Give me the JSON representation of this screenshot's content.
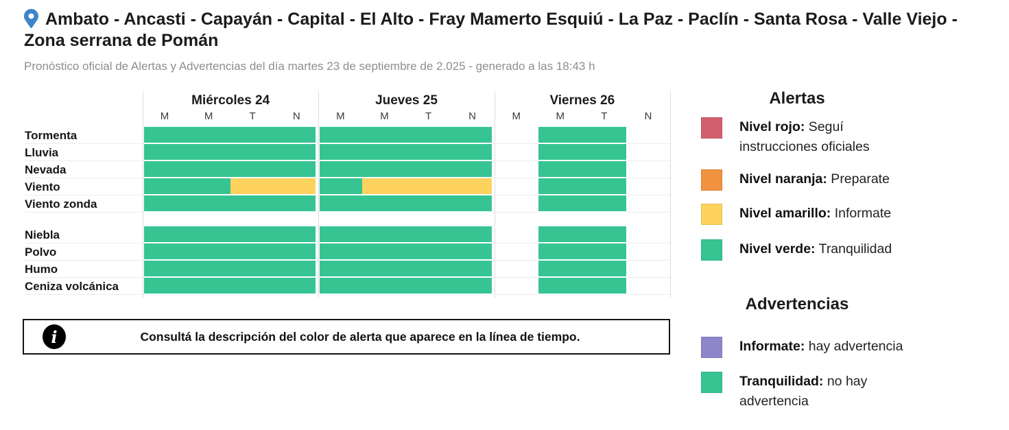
{
  "header": {
    "pin_icon": "location-pin-icon",
    "title": "Ambato - Ancasti - Capayán - Capital - El Alto - Fray Mamerto Esquiú - La Paz - Paclín - Santa Rosa - Valle Viejo - Zona serrana de Pomán",
    "subtitle": "Pronóstico oficial de Alertas y Advertencias del día martes 23 de septiembre de 2.025 - generado a las 18:43 h"
  },
  "colors": {
    "red": "#d25f6d",
    "orange": "#f0923e",
    "yellow": "#fdd35e",
    "green": "#36c592",
    "purple": "#8d86c9",
    "pin_blue": "#3d85c8"
  },
  "chart_data": {
    "type": "heatmap",
    "description": "Alert level timeline per phenomenon; cells are day quarters (M madrugada, M mañana, T tarde, N noche); null = no data",
    "days": [
      {
        "label": "Miércoles 24",
        "slots": [
          "M",
          "M",
          "T",
          "N"
        ]
      },
      {
        "label": "Jueves 25",
        "slots": [
          "M",
          "M",
          "T",
          "N"
        ]
      },
      {
        "label": "Viernes 26",
        "slots": [
          "M",
          "M",
          "T",
          "N"
        ]
      }
    ],
    "row_groups": [
      {
        "rows": [
          {
            "label": "Tormenta",
            "cells": [
              [
                "green",
                "green",
                "green",
                "green"
              ],
              [
                "green",
                "green",
                "green",
                "green"
              ],
              [
                null,
                "green",
                "green",
                null
              ]
            ]
          },
          {
            "label": "Lluvia",
            "cells": [
              [
                "green",
                "green",
                "green",
                "green"
              ],
              [
                "green",
                "green",
                "green",
                "green"
              ],
              [
                null,
                "green",
                "green",
                null
              ]
            ]
          },
          {
            "label": "Nevada",
            "cells": [
              [
                "green",
                "green",
                "green",
                "green"
              ],
              [
                "green",
                "green",
                "green",
                "green"
              ],
              [
                null,
                "green",
                "green",
                null
              ]
            ]
          },
          {
            "label": "Viento",
            "cells": [
              [
                "green",
                "green",
                "yellow",
                "yellow"
              ],
              [
                "green",
                "yellow",
                "yellow",
                "yellow"
              ],
              [
                null,
                "green",
                "green",
                null
              ]
            ]
          },
          {
            "label": "Viento zonda",
            "cells": [
              [
                "green",
                "green",
                "green",
                "green"
              ],
              [
                "green",
                "green",
                "green",
                "green"
              ],
              [
                null,
                "green",
                "green",
                null
              ]
            ]
          }
        ]
      },
      {
        "rows": [
          {
            "label": "Niebla",
            "cells": [
              [
                "green",
                "green",
                "green",
                "green"
              ],
              [
                "green",
                "green",
                "green",
                "green"
              ],
              [
                null,
                "green",
                "green",
                null
              ]
            ]
          },
          {
            "label": "Polvo",
            "cells": [
              [
                "green",
                "green",
                "green",
                "green"
              ],
              [
                "green",
                "green",
                "green",
                "green"
              ],
              [
                null,
                "green",
                "green",
                null
              ]
            ]
          },
          {
            "label": "Humo",
            "cells": [
              [
                "green",
                "green",
                "green",
                "green"
              ],
              [
                "green",
                "green",
                "green",
                "green"
              ],
              [
                null,
                "green",
                "green",
                null
              ]
            ]
          },
          {
            "label": "Ceniza volcánica",
            "cells": [
              [
                "green",
                "green",
                "green",
                "green"
              ],
              [
                "green",
                "green",
                "green",
                "green"
              ],
              [
                null,
                "green",
                "green",
                null
              ]
            ]
          }
        ]
      }
    ]
  },
  "info_box": {
    "icon": "info-icon",
    "icon_glyph": "i",
    "text": "Consultá la descripción del color de alerta que aparece en la línea de tiempo."
  },
  "legend": {
    "alertas": {
      "title": "Alertas",
      "items": [
        {
          "color": "red",
          "label": "Nivel rojo:",
          "desc": " Seguí instrucciones oficiales"
        },
        {
          "color": "orange",
          "label": "Nivel naranja:",
          "desc": " Preparate"
        },
        {
          "color": "yellow",
          "label": "Nivel amarillo:",
          "desc": " Informate"
        },
        {
          "color": "green",
          "label": "Nivel verde:",
          "desc": " Tranquilidad"
        }
      ]
    },
    "advertencias": {
      "title": "Advertencias",
      "items": [
        {
          "color": "purple",
          "label": "Informate:",
          "desc": " hay advertencia"
        },
        {
          "color": "green",
          "label": "Tranquilidad:",
          "desc": " no hay advertencia"
        }
      ]
    }
  }
}
